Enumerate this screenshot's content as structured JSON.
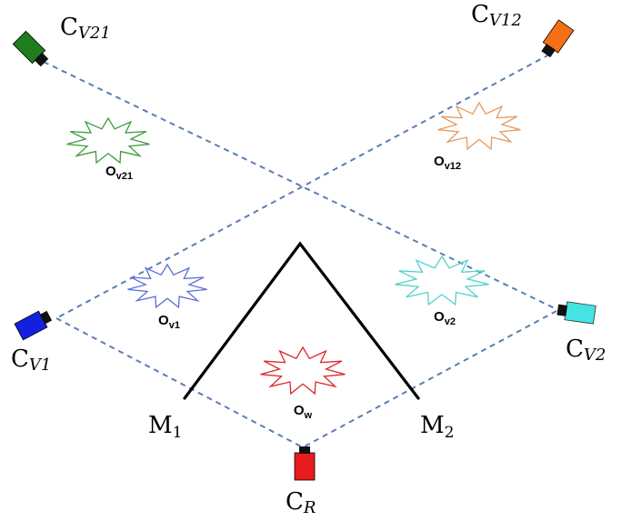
{
  "cameras": [
    {
      "id": "cr",
      "base": "C",
      "sub": "R",
      "color": "#e81c1c"
    },
    {
      "id": "cv1",
      "base": "C",
      "sub": "V1",
      "color": "#1320e0"
    },
    {
      "id": "cv2",
      "base": "C",
      "sub": "V2",
      "color": "#45e3e3"
    },
    {
      "id": "cv12",
      "base": "C",
      "sub": "V12",
      "color": "#f57015"
    },
    {
      "id": "cv21",
      "base": "C",
      "sub": "V21",
      "color": "#1e7e1e"
    }
  ],
  "mirrors": [
    {
      "id": "m1",
      "base": "M",
      "sub": "1"
    },
    {
      "id": "m2",
      "base": "M",
      "sub": "2"
    }
  ],
  "objects": [
    {
      "id": "ow",
      "base": "O",
      "sub": "w",
      "color": "#d9262a"
    },
    {
      "id": "ov1",
      "base": "O",
      "sub": "v1",
      "color": "#5a6fd6"
    },
    {
      "id": "ov2",
      "base": "O",
      "sub": "v2",
      "color": "#4fd3cf"
    },
    {
      "id": "ov12",
      "base": "O",
      "sub": "v12",
      "color": "#e39a5f"
    },
    {
      "id": "ov21",
      "base": "O",
      "sub": "v21",
      "color": "#3e9a3a"
    }
  ]
}
